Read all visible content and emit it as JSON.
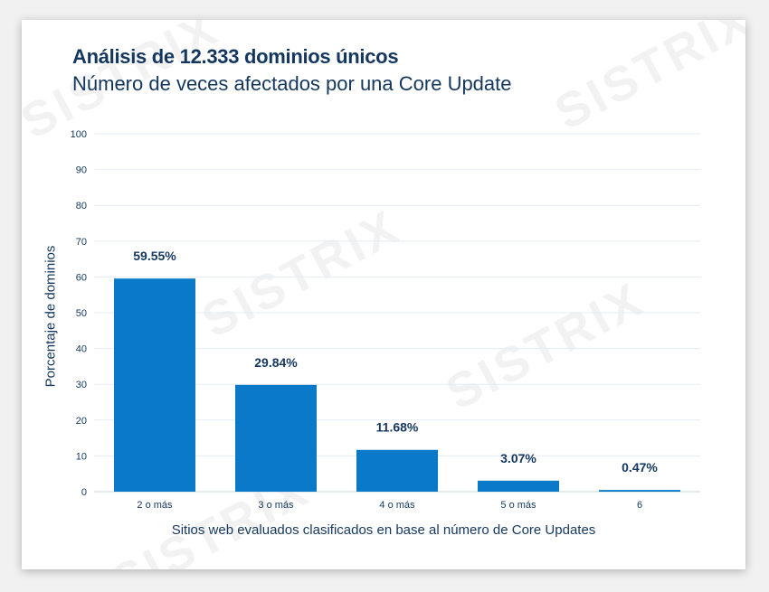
{
  "watermark": "SISTRIX",
  "chart_data": {
    "type": "bar",
    "title": "Análisis de 12.333 dominios únicos",
    "subtitle": "Número de veces afectados por una Core Update",
    "xlabel": "Sitios web evaluados clasificados en base al número de Core Updates",
    "ylabel": "Porcentaje de dominios",
    "categories": [
      "2 o más",
      "3 o más",
      "4 o más",
      "5 o más",
      "6"
    ],
    "values": [
      59.55,
      29.84,
      11.68,
      3.07,
      0.47
    ],
    "data_labels": [
      "59.55%",
      "29.84%",
      "11.68%",
      "3.07%",
      "0.47%"
    ],
    "ylim": [
      0,
      100
    ],
    "yticks": [
      0,
      10,
      20,
      30,
      40,
      50,
      60,
      70,
      80,
      90,
      100
    ],
    "grid": true,
    "bar_color": "#0a79c8",
    "grid_color": "#e6ecf2",
    "text_color": "#14375f"
  }
}
